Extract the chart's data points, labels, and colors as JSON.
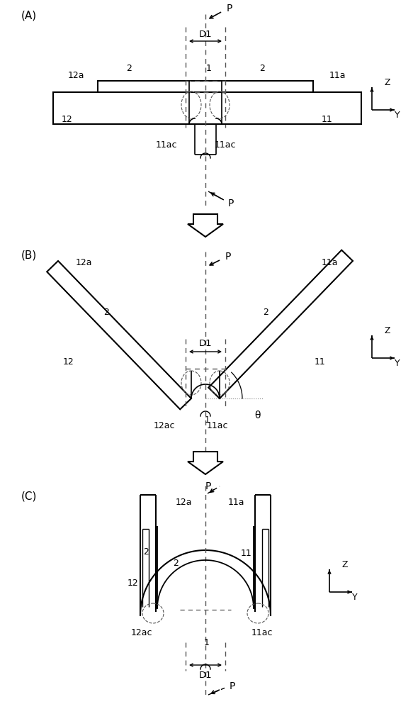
{
  "bg_color": "#ffffff",
  "line_color": "#000000",
  "dashed_color": "#555555",
  "fig_width": 5.83,
  "fig_height": 10.0,
  "panel_A_label": "(A)",
  "panel_B_label": "(B)",
  "panel_C_label": "(C)"
}
